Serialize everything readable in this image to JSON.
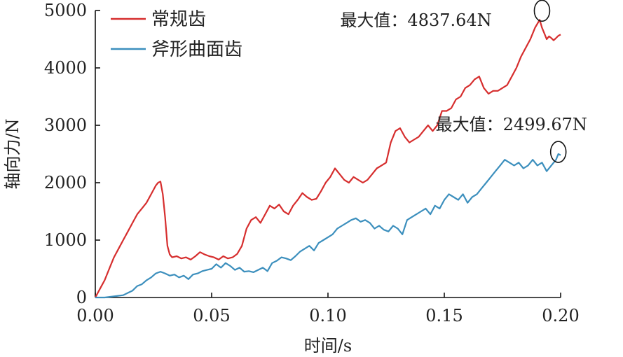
{
  "chart_data": {
    "type": "line",
    "title": "",
    "xlabel": "时间/s",
    "ylabel": "轴向力/N",
    "xlim": [
      0,
      0.2
    ],
    "ylim": [
      0,
      5000
    ],
    "xticks": [
      "0.00",
      "0.05",
      "0.10",
      "0.15",
      "0.20"
    ],
    "yticks": [
      "0",
      "1000",
      "2000",
      "3000",
      "4000",
      "5000"
    ],
    "grid": false,
    "legend_position": "top-left",
    "series": [
      {
        "name": "常规齿",
        "color": "#d62e2e",
        "x": [
          0.0,
          0.002,
          0.004,
          0.006,
          0.008,
          0.01,
          0.012,
          0.014,
          0.016,
          0.018,
          0.02,
          0.022,
          0.024,
          0.026,
          0.027,
          0.028,
          0.029,
          0.03,
          0.031,
          0.032,
          0.033,
          0.035,
          0.037,
          0.039,
          0.041,
          0.043,
          0.045,
          0.047,
          0.049,
          0.051,
          0.053,
          0.055,
          0.057,
          0.059,
          0.061,
          0.063,
          0.065,
          0.067,
          0.069,
          0.071,
          0.073,
          0.075,
          0.077,
          0.079,
          0.081,
          0.083,
          0.085,
          0.087,
          0.089,
          0.091,
          0.093,
          0.095,
          0.097,
          0.099,
          0.101,
          0.103,
          0.105,
          0.107,
          0.109,
          0.111,
          0.113,
          0.115,
          0.117,
          0.119,
          0.121,
          0.123,
          0.125,
          0.127,
          0.129,
          0.131,
          0.133,
          0.135,
          0.137,
          0.139,
          0.141,
          0.143,
          0.145,
          0.147,
          0.149,
          0.151,
          0.153,
          0.155,
          0.157,
          0.159,
          0.161,
          0.163,
          0.165,
          0.167,
          0.169,
          0.171,
          0.173,
          0.175,
          0.177,
          0.179,
          0.181,
          0.183,
          0.185,
          0.187,
          0.189,
          0.191,
          0.192,
          0.193,
          0.194,
          0.195,
          0.196,
          0.197,
          0.198,
          0.199,
          0.2
        ],
        "y": [
          0,
          150,
          300,
          500,
          700,
          850,
          1000,
          1150,
          1300,
          1450,
          1550,
          1650,
          1800,
          1950,
          2000,
          2020,
          1800,
          1400,
          900,
          750,
          700,
          720,
          680,
          700,
          660,
          720,
          790,
          750,
          720,
          700,
          660,
          720,
          680,
          700,
          760,
          900,
          1200,
          1350,
          1400,
          1300,
          1450,
          1600,
          1550,
          1620,
          1500,
          1450,
          1600,
          1700,
          1820,
          1750,
          1700,
          1720,
          1850,
          2000,
          2100,
          2250,
          2150,
          2050,
          2000,
          2100,
          2050,
          2000,
          2050,
          2150,
          2250,
          2300,
          2350,
          2700,
          2900,
          2950,
          2800,
          2700,
          2750,
          2800,
          2900,
          3000,
          2900,
          3000,
          3250,
          3250,
          3300,
          3450,
          3500,
          3650,
          3700,
          3800,
          3850,
          3650,
          3550,
          3600,
          3600,
          3650,
          3700,
          3850,
          4000,
          4200,
          4350,
          4500,
          4700,
          4837.64,
          4700,
          4600,
          4500,
          4550,
          4520,
          4480,
          4520,
          4560,
          4580
        ]
      },
      {
        "name": "斧形曲面齿",
        "color": "#3c8fbd",
        "x": [
          0.0,
          0.004,
          0.008,
          0.01,
          0.012,
          0.014,
          0.016,
          0.018,
          0.02,
          0.022,
          0.024,
          0.026,
          0.028,
          0.03,
          0.032,
          0.034,
          0.036,
          0.038,
          0.04,
          0.042,
          0.044,
          0.046,
          0.048,
          0.05,
          0.052,
          0.054,
          0.056,
          0.058,
          0.06,
          0.062,
          0.064,
          0.066,
          0.068,
          0.07,
          0.072,
          0.074,
          0.076,
          0.078,
          0.08,
          0.082,
          0.084,
          0.086,
          0.088,
          0.09,
          0.092,
          0.094,
          0.096,
          0.098,
          0.1,
          0.102,
          0.104,
          0.106,
          0.108,
          0.11,
          0.112,
          0.114,
          0.116,
          0.118,
          0.12,
          0.122,
          0.124,
          0.126,
          0.128,
          0.13,
          0.132,
          0.134,
          0.136,
          0.138,
          0.14,
          0.142,
          0.144,
          0.146,
          0.148,
          0.15,
          0.152,
          0.154,
          0.156,
          0.158,
          0.16,
          0.162,
          0.164,
          0.166,
          0.168,
          0.17,
          0.172,
          0.174,
          0.176,
          0.178,
          0.18,
          0.182,
          0.184,
          0.186,
          0.188,
          0.19,
          0.192,
          0.194,
          0.196,
          0.198,
          0.199,
          0.2
        ],
        "y": [
          0,
          0,
          20,
          30,
          40,
          80,
          120,
          200,
          230,
          300,
          350,
          420,
          450,
          420,
          380,
          400,
          350,
          380,
          320,
          400,
          420,
          460,
          480,
          500,
          580,
          520,
          600,
          550,
          480,
          520,
          450,
          460,
          440,
          480,
          520,
          460,
          600,
          640,
          700,
          680,
          650,
          720,
          800,
          850,
          900,
          820,
          950,
          1000,
          1050,
          1100,
          1200,
          1250,
          1300,
          1350,
          1380,
          1320,
          1350,
          1300,
          1200,
          1250,
          1180,
          1150,
          1250,
          1200,
          1100,
          1350,
          1400,
          1450,
          1500,
          1550,
          1450,
          1600,
          1550,
          1700,
          1800,
          1750,
          1700,
          1800,
          1650,
          1750,
          1800,
          1900,
          2000,
          2100,
          2200,
          2300,
          2400,
          2350,
          2300,
          2350,
          2250,
          2300,
          2400,
          2300,
          2350,
          2200,
          2300,
          2400,
          2499.67,
          2480
        ]
      }
    ],
    "annotations": [
      {
        "text": "最大值：4837.64N",
        "x": 0.192,
        "y": 4837.64
      },
      {
        "text": "最大值：2499.67N",
        "x": 0.199,
        "y": 2499.67
      }
    ]
  }
}
